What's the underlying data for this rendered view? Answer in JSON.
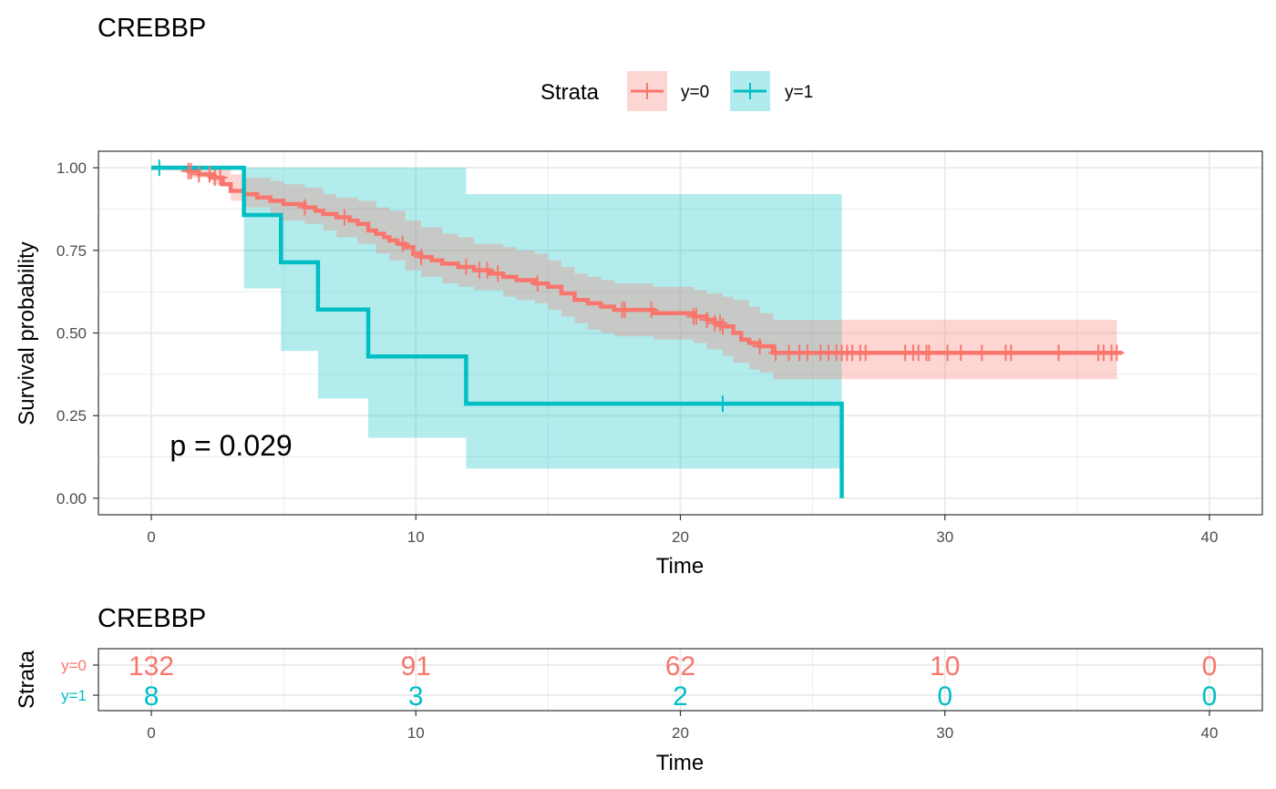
{
  "chart_data": [
    {
      "type": "line",
      "subtype": "kaplan-meier survival curve with 95% confidence bands",
      "title": "CREBBP",
      "xlabel": "Time",
      "ylabel": "Survival probability",
      "xlim": [
        -2,
        42
      ],
      "ylim": [
        -0.05,
        1.05
      ],
      "xticks": [
        "0",
        "10",
        "20",
        "30",
        "40"
      ],
      "yticks": [
        "0.00",
        "0.25",
        "0.50",
        "0.75",
        "1.00"
      ],
      "xtick_values": [
        0,
        10,
        20,
        30,
        40
      ],
      "ytick_values": [
        0,
        0.25,
        0.5,
        0.75,
        1.0
      ],
      "grid": true,
      "legend": {
        "title": "Strata",
        "position": "top",
        "entries": [
          "y=0",
          "y=1"
        ]
      },
      "annotation": "p = 0.029",
      "series": [
        {
          "name": "y=0",
          "color": "#f8766d",
          "band_color": "#fcd6d3",
          "steps": [
            [
              0,
              1.0
            ],
            [
              1.4,
              0.99
            ],
            [
              1.8,
              0.98
            ],
            [
              2.3,
              0.97
            ],
            [
              2.7,
              0.95
            ],
            [
              3.0,
              0.93
            ],
            [
              3.5,
              0.92
            ],
            [
              4.0,
              0.91
            ],
            [
              4.5,
              0.9
            ],
            [
              5.0,
              0.89
            ],
            [
              5.8,
              0.88
            ],
            [
              6.2,
              0.87
            ],
            [
              6.5,
              0.86
            ],
            [
              7.0,
              0.85
            ],
            [
              7.5,
              0.84
            ],
            [
              7.8,
              0.83
            ],
            [
              8.2,
              0.81
            ],
            [
              8.5,
              0.8
            ],
            [
              8.8,
              0.79
            ],
            [
              9.0,
              0.78
            ],
            [
              9.3,
              0.77
            ],
            [
              9.6,
              0.76
            ],
            [
              9.9,
              0.74
            ],
            [
              10.2,
              0.73
            ],
            [
              10.6,
              0.72
            ],
            [
              11.0,
              0.71
            ],
            [
              11.6,
              0.7
            ],
            [
              12.2,
              0.69
            ],
            [
              12.8,
              0.68
            ],
            [
              13.3,
              0.67
            ],
            [
              13.8,
              0.66
            ],
            [
              14.5,
              0.65
            ],
            [
              15.0,
              0.64
            ],
            [
              15.5,
              0.62
            ],
            [
              16.0,
              0.6
            ],
            [
              16.5,
              0.59
            ],
            [
              17.0,
              0.58
            ],
            [
              17.5,
              0.57
            ],
            [
              19.0,
              0.56
            ],
            [
              20.5,
              0.55
            ],
            [
              21.0,
              0.54
            ],
            [
              21.3,
              0.53
            ],
            [
              21.6,
              0.52
            ],
            [
              22.0,
              0.5
            ],
            [
              22.3,
              0.48
            ],
            [
              22.6,
              0.47
            ],
            [
              23.0,
              0.46
            ],
            [
              23.5,
              0.44
            ],
            [
              36.7,
              0.44
            ]
          ],
          "lower_steps": [
            [
              0,
              1.0
            ],
            [
              1.4,
              0.97
            ],
            [
              2.3,
              0.95
            ],
            [
              3.0,
              0.9
            ],
            [
              3.5,
              0.88
            ],
            [
              4.5,
              0.86
            ],
            [
              5.0,
              0.84
            ],
            [
              5.8,
              0.83
            ],
            [
              6.5,
              0.81
            ],
            [
              7.0,
              0.79
            ],
            [
              7.8,
              0.77
            ],
            [
              8.5,
              0.74
            ],
            [
              9.0,
              0.72
            ],
            [
              9.6,
              0.69
            ],
            [
              10.2,
              0.67
            ],
            [
              11.0,
              0.65
            ],
            [
              11.6,
              0.64
            ],
            [
              12.2,
              0.63
            ],
            [
              13.3,
              0.61
            ],
            [
              13.8,
              0.6
            ],
            [
              14.5,
              0.59
            ],
            [
              15.0,
              0.57
            ],
            [
              15.5,
              0.55
            ],
            [
              16.0,
              0.53
            ],
            [
              16.5,
              0.51
            ],
            [
              17.0,
              0.5
            ],
            [
              17.5,
              0.49
            ],
            [
              19.0,
              0.48
            ],
            [
              20.5,
              0.47
            ],
            [
              21.0,
              0.45
            ],
            [
              21.6,
              0.43
            ],
            [
              22.0,
              0.41
            ],
            [
              22.6,
              0.39
            ],
            [
              23.0,
              0.38
            ],
            [
              23.5,
              0.36
            ],
            [
              36.5,
              0.36
            ]
          ],
          "upper_steps": [
            [
              0,
              1.0
            ],
            [
              2.3,
              1.0
            ],
            [
              3.0,
              0.98
            ],
            [
              3.5,
              0.97
            ],
            [
              4.5,
              0.96
            ],
            [
              5.0,
              0.95
            ],
            [
              5.8,
              0.94
            ],
            [
              6.5,
              0.92
            ],
            [
              7.0,
              0.91
            ],
            [
              7.8,
              0.9
            ],
            [
              8.5,
              0.88
            ],
            [
              9.0,
              0.87
            ],
            [
              9.6,
              0.84
            ],
            [
              10.2,
              0.82
            ],
            [
              11.0,
              0.8
            ],
            [
              11.6,
              0.79
            ],
            [
              12.2,
              0.77
            ],
            [
              13.3,
              0.76
            ],
            [
              13.8,
              0.75
            ],
            [
              14.5,
              0.74
            ],
            [
              15.0,
              0.72
            ],
            [
              15.5,
              0.7
            ],
            [
              16.0,
              0.68
            ],
            [
              16.5,
              0.67
            ],
            [
              17.0,
              0.66
            ],
            [
              17.5,
              0.65
            ],
            [
              19.0,
              0.64
            ],
            [
              20.5,
              0.63
            ],
            [
              21.0,
              0.62
            ],
            [
              21.6,
              0.61
            ],
            [
              22.0,
              0.6
            ],
            [
              22.6,
              0.58
            ],
            [
              23.0,
              0.56
            ],
            [
              23.5,
              0.54
            ],
            [
              36.5,
              0.54
            ]
          ],
          "censor_times": [
            1.4,
            1.5,
            1.8,
            2.2,
            2.4,
            2.6,
            5.8,
            7.3,
            9.5,
            10.2,
            11.9,
            12.4,
            12.7,
            13.1,
            14.6,
            17.8,
            17.9,
            18.9,
            20.5,
            20.6,
            21.0,
            21.3,
            21.5,
            21.6,
            23.0,
            23.6,
            24.1,
            24.5,
            24.8,
            25.3,
            25.6,
            25.9,
            26.1,
            26.3,
            26.5,
            26.8,
            27.0,
            28.5,
            28.8,
            29.0,
            29.3,
            29.4,
            30.1,
            30.6,
            31.4,
            32.3,
            32.5,
            34.3,
            35.8,
            36.0,
            36.3,
            36.5
          ]
        },
        {
          "name": "y=1",
          "color": "#00bfc4",
          "band_color": "#b2ebed",
          "steps": [
            [
              0,
              1.0
            ],
            [
              3.5,
              0.857
            ],
            [
              4.9,
              0.714
            ],
            [
              6.3,
              0.571
            ],
            [
              8.2,
              0.429
            ],
            [
              11.9,
              0.286
            ],
            [
              26.1,
              0.0
            ]
          ],
          "lower_steps": [
            [
              0,
              1.0
            ],
            [
              3.5,
              0.635
            ],
            [
              4.9,
              0.446
            ],
            [
              6.3,
              0.302
            ],
            [
              8.2,
              0.183
            ],
            [
              11.9,
              0.09
            ],
            [
              26.1,
              0.09
            ]
          ],
          "upper_steps": [
            [
              0,
              1.0
            ],
            [
              3.5,
              1.0
            ],
            [
              11.9,
              0.92
            ],
            [
              26.1,
              0.92
            ]
          ],
          "censor_times": [
            0.3,
            21.6
          ]
        }
      ]
    },
    {
      "type": "table",
      "title": "CREBBP",
      "xlabel": "Time",
      "ylabel": "Strata",
      "xlim": [
        -2,
        42
      ],
      "xticks": [
        "0",
        "10",
        "20",
        "30",
        "40"
      ],
      "xtick_values": [
        0,
        10,
        20,
        30,
        40
      ],
      "rows": [
        {
          "name": "y=0",
          "color": "#f8766d",
          "values": [
            "132",
            "91",
            "62",
            "10",
            "0"
          ]
        },
        {
          "name": "y=1",
          "color": "#00bfc4",
          "values": [
            "8",
            "3",
            "2",
            "0",
            "0"
          ]
        }
      ]
    }
  ]
}
